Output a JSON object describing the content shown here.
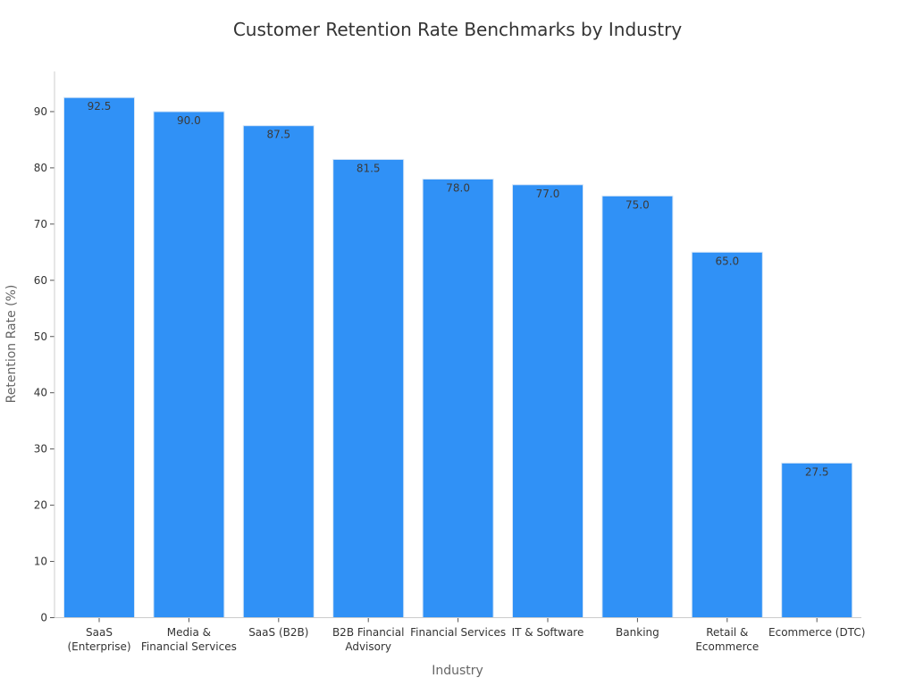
{
  "chart_data": {
    "type": "bar",
    "title": "Customer Retention Rate Benchmarks by Industry",
    "xlabel": "Industry",
    "ylabel": "Retention Rate (%)",
    "categories": [
      [
        "SaaS",
        "(Enterprise)"
      ],
      [
        "Media &",
        "Financial Services"
      ],
      [
        "SaaS (B2B)"
      ],
      [
        "B2B Financial",
        "Advisory"
      ],
      [
        "Financial Services"
      ],
      [
        "IT & Software"
      ],
      [
        "Banking"
      ],
      [
        "Retail &",
        "Ecommerce"
      ],
      [
        "Ecommerce (DTC)"
      ]
    ],
    "values": [
      92.5,
      90.0,
      87.5,
      81.5,
      78.0,
      77.0,
      75.0,
      65.0,
      27.5
    ],
    "data_labels": [
      "92.5",
      "90.0",
      "87.5",
      "81.5",
      "78.0",
      "77.0",
      "75.0",
      "65.0",
      "27.5"
    ],
    "yticks": [
      0,
      10,
      20,
      30,
      40,
      50,
      60,
      70,
      80,
      90
    ],
    "ylim": [
      0,
      97
    ],
    "grid": false,
    "bar_color": "#3091f6"
  }
}
